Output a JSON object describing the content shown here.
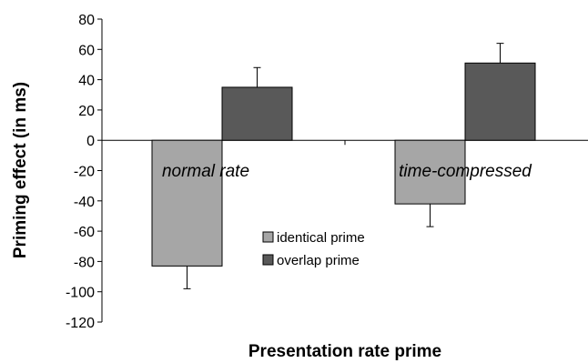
{
  "chart_data": {
    "type": "bar",
    "categories": [
      "normal rate",
      "time-compressed"
    ],
    "series": [
      {
        "name": "identical prime",
        "values": [
          -83,
          -42
        ],
        "error": [
          15,
          15
        ],
        "color": "#a6a6a6"
      },
      {
        "name": "overlap prime",
        "values": [
          35,
          51
        ],
        "error": [
          13,
          13
        ],
        "color": "#595959"
      }
    ],
    "xlabel": "Presentation rate prime",
    "ylabel": "Priming effect (in ms)",
    "ylim": [
      -120,
      80
    ],
    "yticks": [
      80,
      60,
      40,
      20,
      0,
      -20,
      -40,
      -60,
      -80,
      -100,
      -120
    ],
    "grid": false,
    "legend": "center"
  }
}
